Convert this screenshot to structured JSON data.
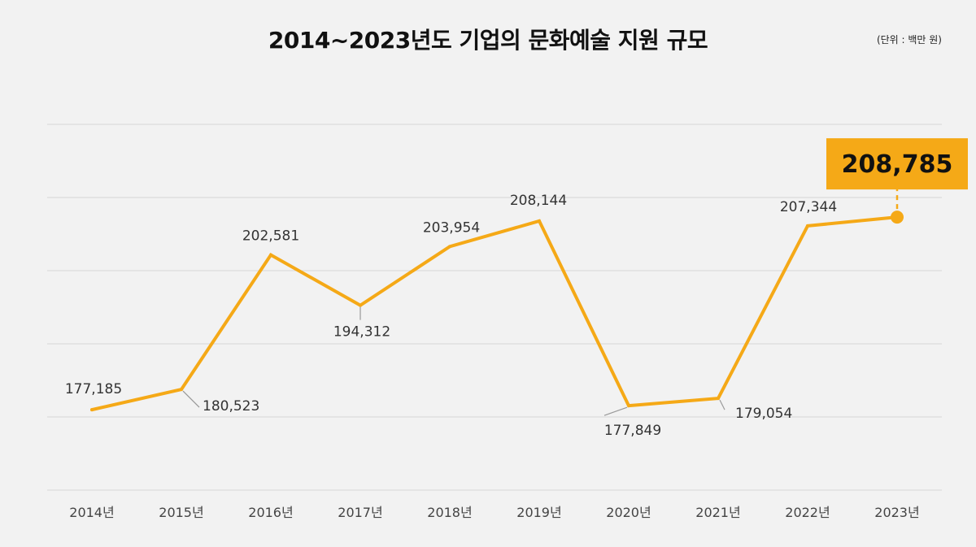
{
  "title": "2014~2023년도 기업의 문화예술 지원 규모",
  "unit": "(단위 : 백만 원)",
  "colors": {
    "background": "#f2f2f2",
    "line": "#f5a917",
    "highlight_box": "#f5a917",
    "grid": "#d6d6d6",
    "leader": "#999999"
  },
  "chart_data": {
    "type": "line",
    "title": "2014~2023년도 기업의 문화예술 지원 규모",
    "xlabel": "",
    "ylabel": "",
    "unit": "(단위 : 백만 원)",
    "categories": [
      "2014년",
      "2015년",
      "2016년",
      "2017년",
      "2018년",
      "2019년",
      "2020년",
      "2021년",
      "2022년",
      "2023년"
    ],
    "series": [
      {
        "values": [
          177185,
          180523,
          202581,
          194312,
          203954,
          208144,
          177849,
          179054,
          207344,
          208785
        ]
      }
    ],
    "data_labels": [
      "177,185",
      "180,523",
      "202,581",
      "194,312",
      "203,954",
      "208,144",
      "177,849",
      "179,054",
      "207,344",
      "208,785"
    ],
    "highlight": {
      "index": 9,
      "label": "208,785"
    },
    "grid": true,
    "y_axis_labels_shown": false,
    "legend": "none"
  }
}
